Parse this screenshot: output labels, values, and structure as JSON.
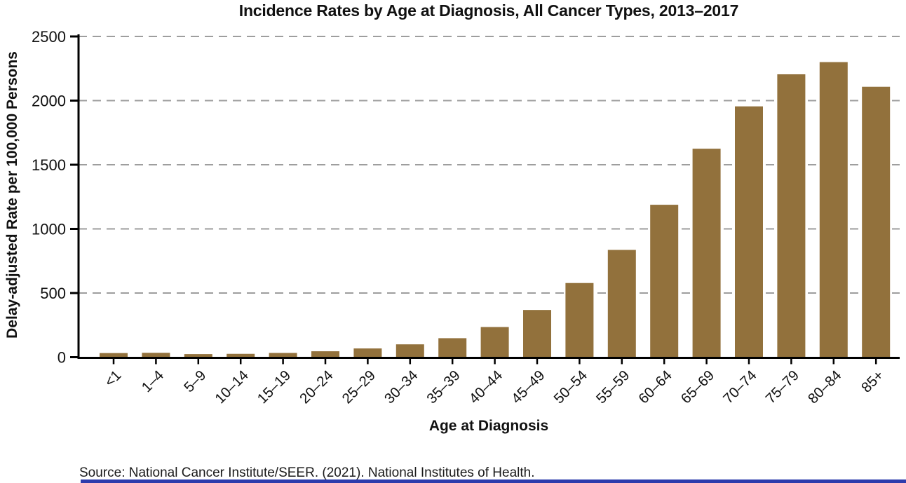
{
  "chart_data": {
    "type": "bar",
    "title": "Incidence Rates by Age at Diagnosis, All Cancer Types, 2013–2017",
    "xlabel": "Age at Diagnosis",
    "ylabel": "Delay-adjusted Rate per 100,000 Persons",
    "categories": [
      "<1",
      "1–4",
      "5–9",
      "10–14",
      "15–19",
      "20–24",
      "25–29",
      "30–34",
      "35–39",
      "40–44",
      "45–49",
      "50–54",
      "55–59",
      "60–64",
      "65–69",
      "70–74",
      "75–79",
      "80–84",
      "85+"
    ],
    "values": [
      32,
      34,
      24,
      26,
      33,
      46,
      68,
      100,
      148,
      235,
      368,
      578,
      836,
      1188,
      1625,
      1955,
      2205,
      2300,
      2108
    ],
    "ylim": [
      0,
      2500
    ],
    "yticks": [
      0,
      500,
      1000,
      1500,
      2000,
      2500
    ],
    "grid": "horizontal-dashed",
    "legend": "none",
    "bar_color": "#92713c",
    "axis_color": "#000000",
    "gridline_color": "#9e9e9e",
    "text_color": "#111111"
  },
  "source_note": "Source: National Cancer Institute/SEER. (2021). National Institutes of Health.",
  "footer_rule_color": "#2d3bac"
}
